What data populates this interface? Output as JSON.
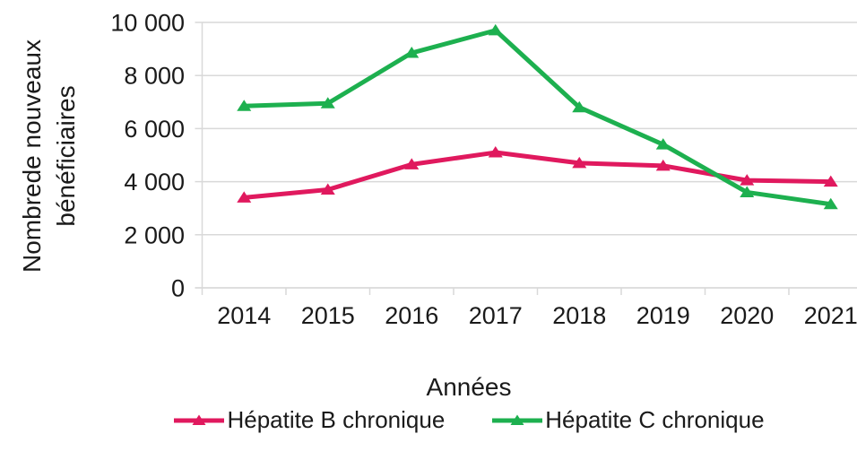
{
  "y_axis": {
    "title_line1": "Nombrede nouveaux",
    "title_line2": "bénéficiaires",
    "tick_labels": [
      "0",
      "2 000",
      "4 000",
      "6 000",
      "8 000",
      "10 000"
    ],
    "tick_values": [
      0,
      2000,
      4000,
      6000,
      8000,
      10000
    ]
  },
  "x_axis": {
    "title": "Années"
  },
  "legend": {
    "items": [
      {
        "label": "Hépatite B chronique",
        "color": "#E0195E",
        "marker": "triangle-up-icon"
      },
      {
        "label": "Hépatite C chronique",
        "color": "#1DB04F",
        "marker": "triangle-up-icon"
      }
    ]
  },
  "colors": {
    "grid": "#D9D9D9",
    "axis": "#D9D9D9",
    "text": "#1A1A1A",
    "background": "#FFFFFF"
  },
  "chart_data": {
    "type": "line",
    "title": "",
    "xlabel": "Années",
    "ylabel": "Nombrede nouveaux bénéficiaires",
    "categories": [
      "2014",
      "2015",
      "2016",
      "2017",
      "2018",
      "2019",
      "2020",
      "2021"
    ],
    "series": [
      {
        "name": "Hépatite B chronique",
        "color": "#E0195E",
        "marker": "triangle-up",
        "values": [
          3400,
          3700,
          4650,
          5100,
          4700,
          4600,
          4050,
          4000
        ]
      },
      {
        "name": "Hépatite C chronique",
        "color": "#1DB04F",
        "marker": "triangle-up",
        "values": [
          6850,
          6950,
          8850,
          9700,
          6800,
          5400,
          3600,
          3150
        ]
      }
    ],
    "ylim": [
      0,
      10000
    ],
    "ytick_step": 2000,
    "grid": true,
    "legend_position": "bottom"
  }
}
